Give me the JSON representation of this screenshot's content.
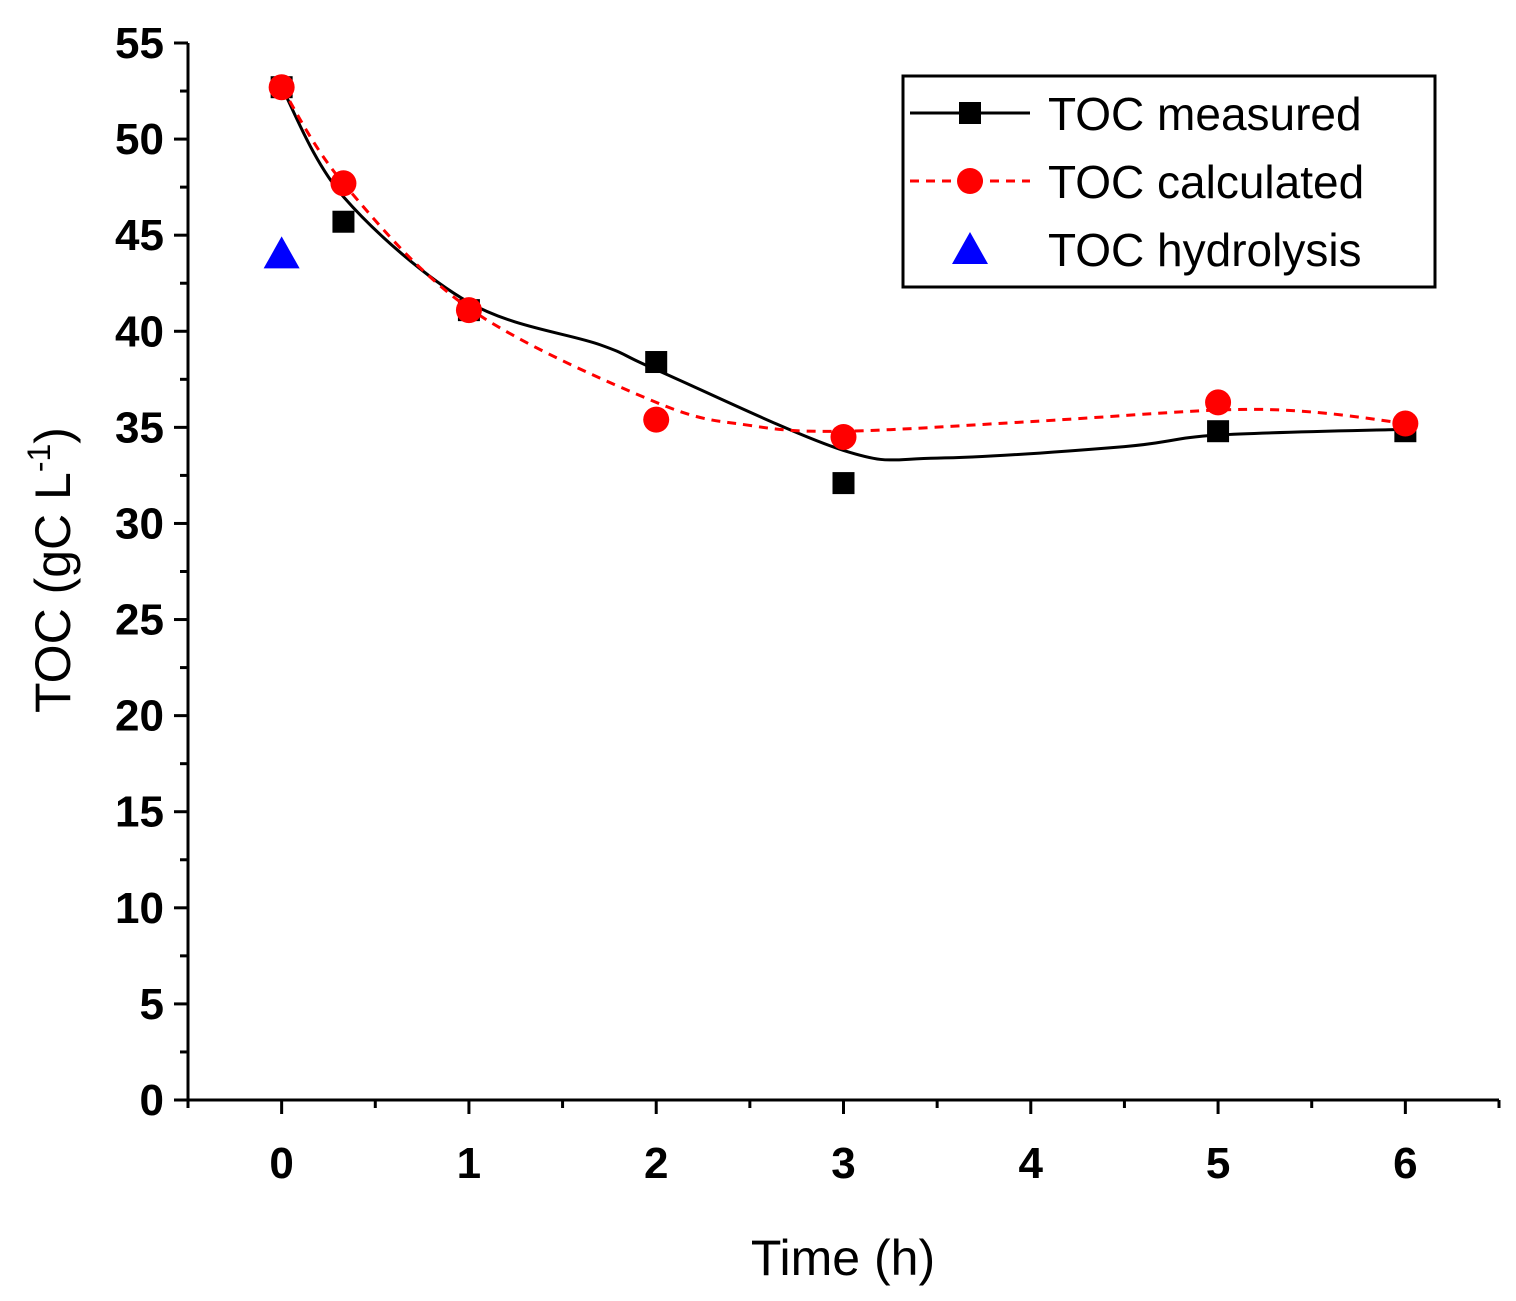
{
  "chart_data": {
    "type": "line",
    "title": "",
    "xlabel": "Time (h)",
    "ylabel": {
      "main": "TOC (gC L",
      "sup": "-1",
      "close": ")"
    },
    "xlim": [
      -0.5,
      6.5
    ],
    "ylim": [
      0,
      55
    ],
    "xticks": [
      0,
      1,
      2,
      3,
      4,
      5,
      6
    ],
    "xtick_labels": [
      "0",
      "1",
      "2",
      "3",
      "4",
      "5",
      "6"
    ],
    "yticks": [
      0,
      5,
      10,
      15,
      20,
      25,
      30,
      35,
      40,
      45,
      50,
      55
    ],
    "ytick_labels": [
      "0",
      "5",
      "10",
      "15",
      "20",
      "25",
      "30",
      "35",
      "40",
      "45",
      "50",
      "55"
    ],
    "legend_position": "top-right",
    "series": [
      {
        "name": "TOC measured",
        "marker": "square",
        "line": "solid",
        "color": "#000000",
        "x": [
          0,
          0.33,
          1,
          2,
          3,
          5,
          6
        ],
        "y": [
          52.7,
          45.7,
          41.1,
          38.4,
          32.1,
          34.8,
          34.8
        ],
        "curve_x": [
          0,
          0.33,
          1,
          1.7,
          2,
          3,
          3.5,
          4.5,
          5,
          6
        ],
        "curve_y": [
          52.7,
          47.0,
          41.5,
          39.3,
          38.0,
          33.8,
          33.4,
          34.0,
          34.6,
          34.9
        ]
      },
      {
        "name": "TOC calculated",
        "marker": "circle",
        "line": "dashed",
        "color": "#ff0000",
        "x": [
          0,
          0.33,
          1,
          2,
          3,
          5,
          6
        ],
        "y": [
          52.7,
          47.7,
          41.1,
          35.4,
          34.5,
          36.3,
          35.2
        ],
        "curve_x": [
          0,
          0.33,
          1,
          2,
          2.5,
          3,
          4,
          5,
          5.5,
          6
        ],
        "curve_y": [
          52.7,
          47.7,
          41.2,
          36.3,
          35.1,
          34.8,
          35.3,
          35.9,
          35.8,
          35.2
        ]
      },
      {
        "name": "TOC hydrolysis",
        "marker": "triangle",
        "line": "none",
        "color": "#0000ff",
        "x": [
          0
        ],
        "y": [
          44.0
        ]
      }
    ]
  }
}
